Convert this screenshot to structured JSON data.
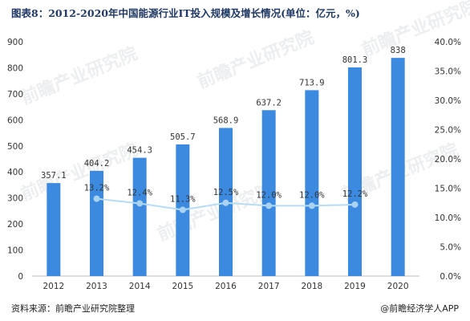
{
  "title": "图表8：2012-2020年中国能源行业IT投入规模及增长情况(单位：亿元，%)",
  "source": "资料来源：前瞻产业研究院整理",
  "brand": "@前瞻经济学人APP",
  "watermark_text": "前瞻产业研究院",
  "colors": {
    "bar": "#3c8ae0",
    "line": "#b7dcf5",
    "marker": "#a9d3f0"
  },
  "chart_data": {
    "type": "bar",
    "categories": [
      "2012",
      "2013",
      "2014",
      "2015",
      "2016",
      "2017",
      "2018",
      "2019",
      "2020"
    ],
    "series": [
      {
        "values": [
          357.1,
          404.2,
          454.3,
          505.7,
          568.9,
          637.2,
          713.9,
          801.3,
          838
        ],
        "labels": [
          "357.1",
          "404.2",
          "454.3",
          "505.7",
          "568.9",
          "637.2",
          "713.9",
          "801.3",
          "838"
        ],
        "axis": "left",
        "type": "bar"
      },
      {
        "values": [
          null,
          13.2,
          12.4,
          11.3,
          12.5,
          12.0,
          12.0,
          12.2,
          null
        ],
        "labels": [
          "",
          "13.2%",
          "12.4%",
          "11.3%",
          "12.5%",
          "12.0%",
          "12.0%",
          "12.2%",
          ""
        ],
        "axis": "right",
        "type": "line"
      }
    ],
    "y_left": {
      "ylim": [
        0,
        900
      ],
      "ticks": [
        "0",
        "100",
        "200",
        "300",
        "400",
        "500",
        "600",
        "700",
        "800",
        "900"
      ]
    },
    "y_right": {
      "ylim": [
        0,
        40
      ],
      "ticks": [
        "0.0%",
        "5.0%",
        "10.0%",
        "15.0%",
        "20.0%",
        "25.0%",
        "30.0%",
        "35.0%",
        "40.0%"
      ]
    },
    "grid": false,
    "legend": "none"
  }
}
